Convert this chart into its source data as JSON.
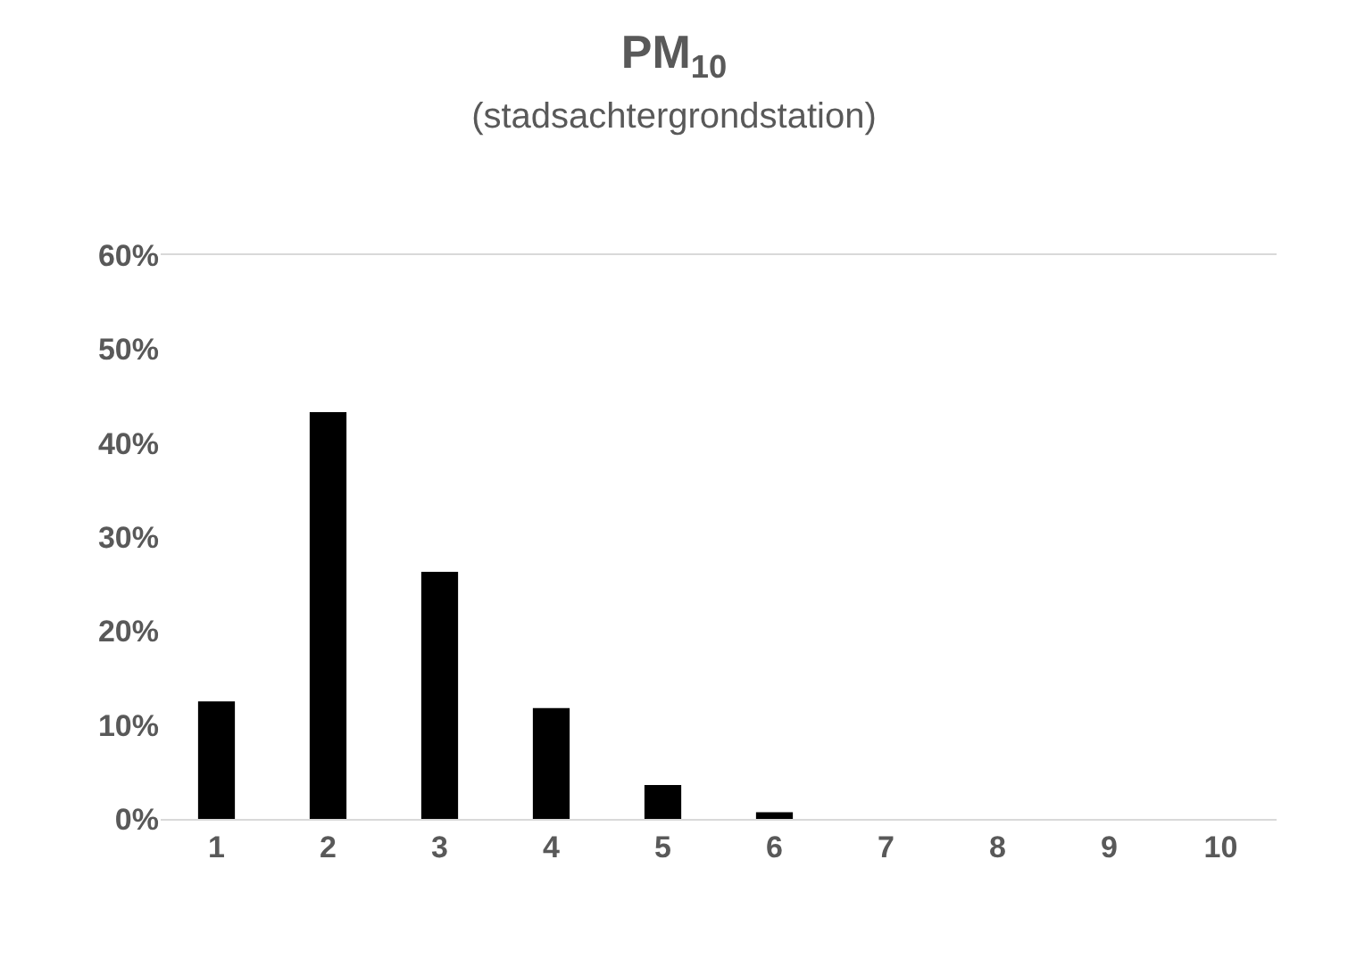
{
  "chart_data": {
    "type": "bar",
    "title": "PM$_{10}$",
    "subtitle": "(stadsachtergrondstation)",
    "categories": [
      "1",
      "2",
      "3",
      "4",
      "5",
      "6",
      "7",
      "8",
      "9",
      "10"
    ],
    "values": [
      12.5,
      43.3,
      26.3,
      11.8,
      3.6,
      0.7,
      0,
      0,
      0,
      0
    ],
    "color": "#000000",
    "ylim": [
      0,
      60
    ],
    "yticks": [
      {
        "value": 0,
        "label": "0%"
      },
      {
        "value": 10,
        "label": "10%"
      },
      {
        "value": 20,
        "label": "20%"
      },
      {
        "value": 30,
        "label": "30%"
      },
      {
        "value": 40,
        "label": "40%"
      },
      {
        "value": 50,
        "label": "50%"
      },
      {
        "value": 60,
        "label": "60%"
      }
    ],
    "grid": false
  }
}
